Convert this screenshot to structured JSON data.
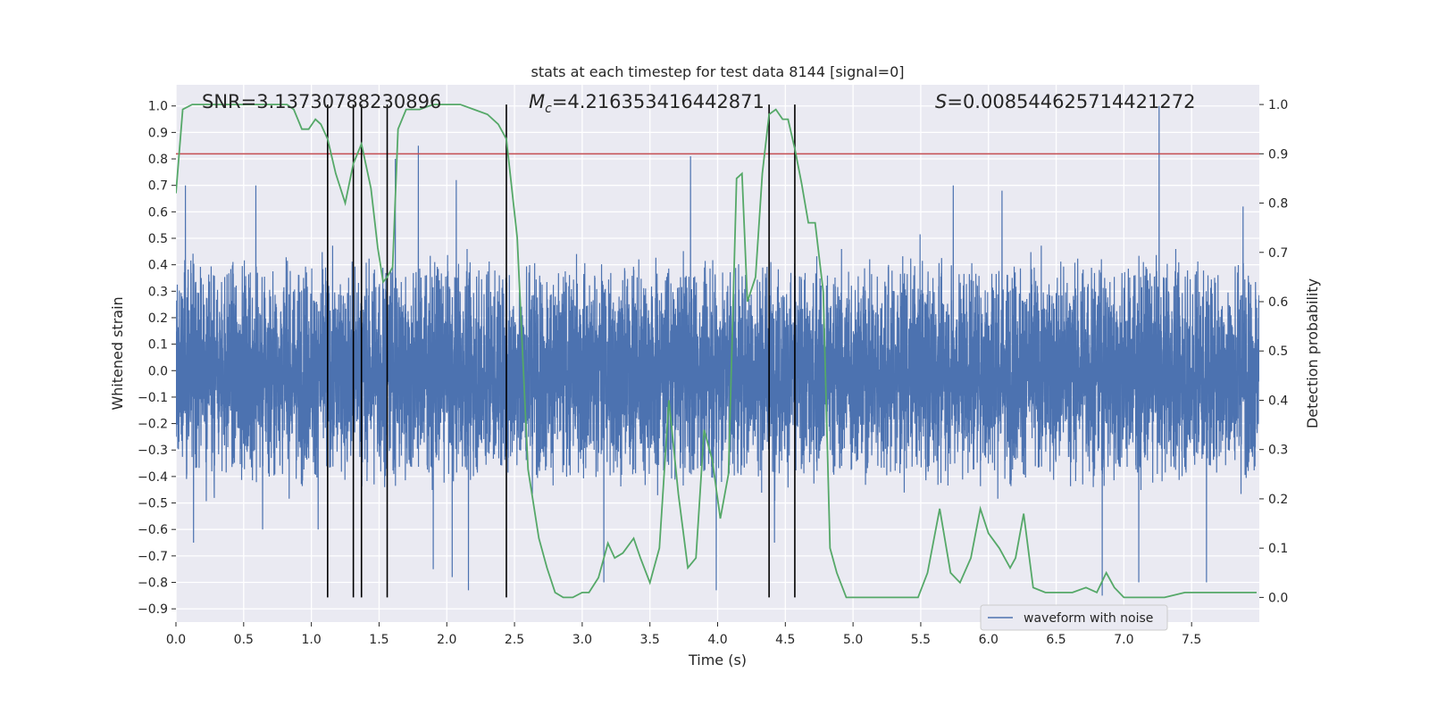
{
  "chart_data": {
    "type": "line",
    "title": "stats at each timestep for test data 8144 [signal=0]",
    "xlabel": "Time (s)",
    "ylabel": "Whitened strain",
    "y2label": "Detection probability",
    "xlim": [
      0.0,
      8.0
    ],
    "ylim": [
      -0.95,
      1.08
    ],
    "y2lim": [
      -0.05,
      1.04
    ],
    "x_ticks": [
      0.0,
      0.5,
      1.0,
      1.5,
      2.0,
      2.5,
      3.0,
      3.5,
      4.0,
      4.5,
      5.0,
      5.5,
      6.0,
      6.5,
      7.0,
      7.5
    ],
    "x_tick_labels": [
      "0.0",
      "0.5",
      "1.0",
      "1.5",
      "2.0",
      "2.5",
      "3.0",
      "3.5",
      "4.0",
      "4.5",
      "5.0",
      "5.5",
      "6.0",
      "6.5",
      "7.0",
      "7.5"
    ],
    "y_ticks": [
      1.0,
      0.9,
      0.8,
      0.7,
      0.6,
      0.5,
      0.4,
      0.3,
      0.2,
      0.1,
      0.0,
      -0.1,
      -0.2,
      -0.3,
      -0.4,
      -0.5,
      -0.6,
      -0.7,
      -0.8,
      -0.9
    ],
    "y_tick_labels": [
      "1.0",
      "0.9",
      "0.8",
      "0.7",
      "0.6",
      "0.5",
      "0.4",
      "0.3",
      "0.2",
      "0.1",
      "0.0",
      "−0.1",
      "−0.2",
      "−0.3",
      "−0.4",
      "−0.5",
      "−0.6",
      "−0.7",
      "−0.8",
      "−0.9"
    ],
    "y2_ticks": [
      1.0,
      0.9,
      0.8,
      0.7,
      0.6,
      0.5,
      0.4,
      0.3,
      0.2,
      0.1,
      0.0
    ],
    "y2_tick_labels": [
      "1.0",
      "0.9",
      "0.8",
      "0.7",
      "0.6",
      "0.5",
      "0.4",
      "0.3",
      "0.2",
      "0.1",
      "0.0"
    ],
    "annotations": {
      "snr": "SNR=3.13730788230896",
      "mc_symbol": "M",
      "mc_sub": "c",
      "mc_value": "=4.216353416442871",
      "s_symbol": "S",
      "s_value": "=0.008544625714421272"
    },
    "threshold": {
      "axis": "y2",
      "value": 0.9,
      "color": "#c44e52"
    },
    "event_lines": [
      1.12,
      1.31,
      1.37,
      1.56,
      2.44,
      4.38,
      4.57
    ],
    "waveform": {
      "name": "waveform with noise",
      "color": "#4c72b0",
      "samples": 8000,
      "core_amplitude": 0.35,
      "spike_peaks": [
        {
          "t": 0.07,
          "v": 0.7
        },
        {
          "t": 0.13,
          "v": -0.65
        },
        {
          "t": 0.59,
          "v": 0.7
        },
        {
          "t": 0.64,
          "v": -0.6
        },
        {
          "t": 1.05,
          "v": -0.6
        },
        {
          "t": 1.62,
          "v": 0.8
        },
        {
          "t": 1.79,
          "v": 0.85
        },
        {
          "t": 1.9,
          "v": -0.75
        },
        {
          "t": 2.04,
          "v": -0.78
        },
        {
          "t": 2.07,
          "v": 0.72
        },
        {
          "t": 2.16,
          "v": -0.83
        },
        {
          "t": 3.16,
          "v": -0.8
        },
        {
          "t": 3.8,
          "v": 0.81
        },
        {
          "t": 3.99,
          "v": -0.83
        },
        {
          "t": 4.42,
          "v": -0.65
        },
        {
          "t": 5.74,
          "v": 0.7
        },
        {
          "t": 6.1,
          "v": 0.68
        },
        {
          "t": 6.84,
          "v": -0.85
        },
        {
          "t": 7.11,
          "v": -0.8
        },
        {
          "t": 7.26,
          "v": 1.0
        },
        {
          "t": 7.61,
          "v": -0.8
        },
        {
          "t": 7.88,
          "v": 0.62
        }
      ]
    },
    "probability": {
      "name": "detection probability",
      "color": "#55a868",
      "x": [
        0.0,
        0.05,
        0.12,
        0.2,
        0.3,
        0.45,
        0.6,
        0.75,
        0.82,
        0.87,
        0.93,
        0.98,
        1.03,
        1.07,
        1.12,
        1.18,
        1.25,
        1.31,
        1.37,
        1.44,
        1.49,
        1.53,
        1.56,
        1.6,
        1.64,
        1.7,
        1.8,
        1.9,
        2.0,
        2.1,
        2.2,
        2.3,
        2.38,
        2.44,
        2.52,
        2.6,
        2.68,
        2.74,
        2.8,
        2.86,
        2.93,
        3.0,
        3.05,
        3.12,
        3.19,
        3.24,
        3.3,
        3.38,
        3.43,
        3.5,
        3.57,
        3.64,
        3.71,
        3.78,
        3.84,
        3.9,
        3.96,
        4.02,
        4.08,
        4.14,
        4.18,
        4.22,
        4.28,
        4.33,
        4.38,
        4.43,
        4.48,
        4.52,
        4.57,
        4.62,
        4.67,
        4.72,
        4.78,
        4.83,
        4.88,
        4.95,
        5.1,
        5.3,
        5.48,
        5.55,
        5.64,
        5.72,
        5.79,
        5.87,
        5.94,
        6.0,
        6.08,
        6.16,
        6.2,
        6.26,
        6.33,
        6.42,
        6.52,
        6.62,
        6.72,
        6.8,
        6.87,
        6.93,
        7.0,
        7.1,
        7.3,
        7.45,
        7.55,
        7.65,
        7.75,
        7.85,
        7.98
      ],
      "y": [
        0.82,
        0.99,
        1.0,
        1.0,
        1.0,
        1.0,
        1.0,
        1.0,
        1.0,
        0.99,
        0.95,
        0.95,
        0.97,
        0.96,
        0.93,
        0.86,
        0.8,
        0.88,
        0.92,
        0.83,
        0.71,
        0.64,
        0.65,
        0.67,
        0.95,
        0.99,
        0.99,
        1.0,
        1.0,
        1.0,
        0.99,
        0.98,
        0.96,
        0.93,
        0.73,
        0.26,
        0.12,
        0.06,
        0.01,
        0.0,
        0.0,
        0.01,
        0.01,
        0.04,
        0.11,
        0.08,
        0.09,
        0.12,
        0.08,
        0.03,
        0.1,
        0.4,
        0.21,
        0.06,
        0.08,
        0.34,
        0.28,
        0.16,
        0.25,
        0.85,
        0.86,
        0.6,
        0.65,
        0.86,
        0.98,
        0.99,
        0.97,
        0.97,
        0.91,
        0.84,
        0.76,
        0.76,
        0.62,
        0.1,
        0.05,
        0.0,
        0.0,
        0.0,
        0.0,
        0.05,
        0.18,
        0.05,
        0.03,
        0.08,
        0.18,
        0.13,
        0.1,
        0.06,
        0.08,
        0.17,
        0.02,
        0.01,
        0.01,
        0.01,
        0.02,
        0.01,
        0.05,
        0.02,
        0.0,
        0.0,
        0.0,
        0.01,
        0.01,
        0.01,
        0.01,
        0.01,
        0.01
      ]
    },
    "legend": {
      "label": "waveform with noise",
      "placement": "lower-right"
    }
  }
}
